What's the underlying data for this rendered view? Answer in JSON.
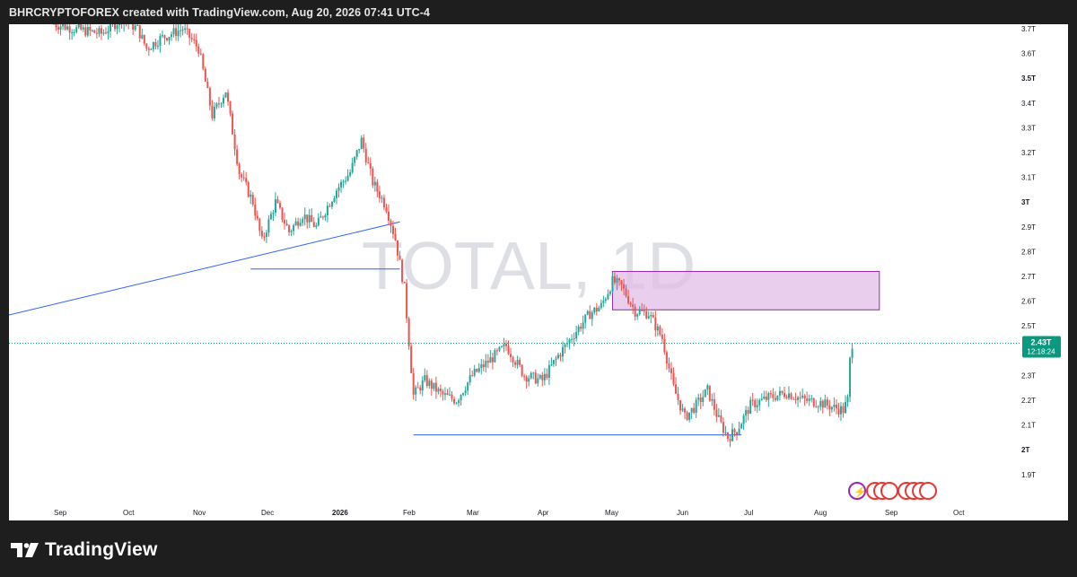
{
  "header": {
    "text": "BHRCRYPTOFOREX created with TradingView.com, Aug 20, 2026 07:41 UTC-4"
  },
  "watermark": {
    "symbol": "TOTAL",
    "interval": "1D",
    "text": "TOTAL, 1D"
  },
  "price_label": {
    "value": "2.43T",
    "countdown": "12:18:24"
  },
  "footer": {
    "brand": "TradingView"
  },
  "colors": {
    "up": "#26a69a",
    "down": "#ef5350",
    "trendline": "#2962ff",
    "zone_fill": "#e1bee7",
    "zone_border": "#9c27b0",
    "price_tag": "#089981"
  },
  "chart_data": {
    "type": "candlestick",
    "y_axis": {
      "ticks": [
        {
          "v": 1.9,
          "label": "1.9T"
        },
        {
          "v": 2.0,
          "label": "2T"
        },
        {
          "v": 2.1,
          "label": "2.1T"
        },
        {
          "v": 2.2,
          "label": "2.2T"
        },
        {
          "v": 2.3,
          "label": "2.3T"
        },
        {
          "v": 2.5,
          "label": "2.5T"
        },
        {
          "v": 2.6,
          "label": "2.6T"
        },
        {
          "v": 2.7,
          "label": "2.7T"
        },
        {
          "v": 2.8,
          "label": "2.8T"
        },
        {
          "v": 2.9,
          "label": "2.9T"
        },
        {
          "v": 3.0,
          "label": "3T"
        },
        {
          "v": 3.1,
          "label": "3.1T"
        },
        {
          "v": 3.2,
          "label": "3.2T"
        },
        {
          "v": 3.3,
          "label": "3.3T"
        },
        {
          "v": 3.4,
          "label": "3.4T"
        },
        {
          "v": 3.5,
          "label": "3.5T"
        },
        {
          "v": 3.6,
          "label": "3.6T"
        },
        {
          "v": 3.7,
          "label": "3.7T"
        }
      ],
      "bold": [
        "2T",
        "3T",
        "3.5T"
      ],
      "unit": "T (trillion USD)",
      "range": [
        1.86,
        3.72
      ]
    },
    "x_axis": {
      "ticks": [
        {
          "label": "Sep",
          "bold": false
        },
        {
          "label": "Oct",
          "bold": false
        },
        {
          "label": "Nov",
          "bold": false
        },
        {
          "label": "Dec",
          "bold": false
        },
        {
          "label": "2026",
          "bold": true
        },
        {
          "label": "Feb",
          "bold": false
        },
        {
          "label": "Mar",
          "bold": false
        },
        {
          "label": "Apr",
          "bold": false
        },
        {
          "label": "May",
          "bold": false
        },
        {
          "label": "Jun",
          "bold": false
        },
        {
          "label": "Jul",
          "bold": false
        },
        {
          "label": "Aug",
          "bold": false
        },
        {
          "label": "Sep",
          "bold": false
        },
        {
          "label": "Oct",
          "bold": false
        }
      ]
    },
    "price_path": [
      {
        "date": "2025-09-01",
        "price": 3.72
      },
      {
        "date": "2025-09-10",
        "price": 3.7
      },
      {
        "date": "2025-09-22",
        "price": 3.68
      },
      {
        "date": "2025-10-01",
        "price": 3.74
      },
      {
        "date": "2025-10-08",
        "price": 3.7
      },
      {
        "date": "2025-10-12",
        "price": 3.62
      },
      {
        "date": "2025-10-18",
        "price": 3.66
      },
      {
        "date": "2025-10-28",
        "price": 3.7
      },
      {
        "date": "2025-11-04",
        "price": 3.62
      },
      {
        "date": "2025-11-10",
        "price": 3.35
      },
      {
        "date": "2025-11-16",
        "price": 3.45
      },
      {
        "date": "2025-11-22",
        "price": 3.12
      },
      {
        "date": "2025-11-28",
        "price": 3.0
      },
      {
        "date": "2025-12-02",
        "price": 2.84
      },
      {
        "date": "2025-12-08",
        "price": 3.0
      },
      {
        "date": "2025-12-14",
        "price": 2.88
      },
      {
        "date": "2025-12-20",
        "price": 2.95
      },
      {
        "date": "2025-12-26",
        "price": 2.9
      },
      {
        "date": "2026-01-04",
        "price": 3.05
      },
      {
        "date": "2026-01-10",
        "price": 3.12
      },
      {
        "date": "2026-01-15",
        "price": 3.25
      },
      {
        "date": "2026-01-20",
        "price": 3.08
      },
      {
        "date": "2026-01-26",
        "price": 2.98
      },
      {
        "date": "2026-01-30",
        "price": 2.85
      },
      {
        "date": "2026-02-03",
        "price": 2.65
      },
      {
        "date": "2026-02-07",
        "price": 2.22
      },
      {
        "date": "2026-02-12",
        "price": 2.28
      },
      {
        "date": "2026-02-20",
        "price": 2.22
      },
      {
        "date": "2026-02-26",
        "price": 2.2
      },
      {
        "date": "2026-03-05",
        "price": 2.3
      },
      {
        "date": "2026-03-15",
        "price": 2.38
      },
      {
        "date": "2026-03-20",
        "price": 2.42
      },
      {
        "date": "2026-03-28",
        "price": 2.3
      },
      {
        "date": "2026-04-05",
        "price": 2.28
      },
      {
        "date": "2026-04-12",
        "price": 2.38
      },
      {
        "date": "2026-04-20",
        "price": 2.48
      },
      {
        "date": "2026-04-26",
        "price": 2.55
      },
      {
        "date": "2026-05-01",
        "price": 2.58
      },
      {
        "date": "2026-05-06",
        "price": 2.68
      },
      {
        "date": "2026-05-10",
        "price": 2.66
      },
      {
        "date": "2026-05-16",
        "price": 2.56
      },
      {
        "date": "2026-05-22",
        "price": 2.55
      },
      {
        "date": "2026-05-28",
        "price": 2.45
      },
      {
        "date": "2026-06-02",
        "price": 2.25
      },
      {
        "date": "2026-06-07",
        "price": 2.13
      },
      {
        "date": "2026-06-12",
        "price": 2.18
      },
      {
        "date": "2026-06-17",
        "price": 2.24
      },
      {
        "date": "2026-06-22",
        "price": 2.12
      },
      {
        "date": "2026-06-26",
        "price": 2.05
      },
      {
        "date": "2026-06-30",
        "price": 2.08
      },
      {
        "date": "2026-07-06",
        "price": 2.18
      },
      {
        "date": "2026-07-14",
        "price": 2.21
      },
      {
        "date": "2026-07-22",
        "price": 2.23
      },
      {
        "date": "2026-07-30",
        "price": 2.2
      },
      {
        "date": "2026-08-06",
        "price": 2.19
      },
      {
        "date": "2026-08-12",
        "price": 2.17
      },
      {
        "date": "2026-08-16",
        "price": 2.16
      },
      {
        "date": "2026-08-18",
        "price": 2.2
      },
      {
        "date": "2026-08-19",
        "price": 2.36
      },
      {
        "date": "2026-08-20",
        "price": 2.43
      }
    ],
    "last_price": 2.43,
    "annotations": {
      "trendline": {
        "from": {
          "date": "2025-08-01",
          "price": 2.52
        },
        "to": {
          "date": "2026-02-01",
          "price": 2.92
        }
      },
      "support_lines": [
        {
          "from": "2025-11-27",
          "to": "2026-02-01",
          "price": 2.73
        },
        {
          "from": "2026-02-07",
          "to": "2026-07-02",
          "price": 2.06
        }
      ],
      "supply_zone": {
        "from": "2026-05-06",
        "to": "2026-09-01",
        "top": 2.72,
        "bottom": 2.565
      }
    }
  }
}
